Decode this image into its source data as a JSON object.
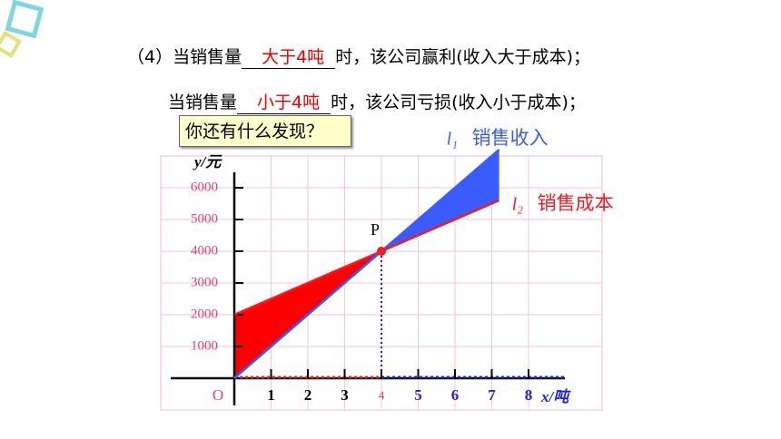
{
  "header": {
    "line1": {
      "prefix": "（4）当销售量",
      "blank": "大于4吨",
      "suffix": "时，该公司赢利(收入大于成本)；"
    },
    "line2": {
      "prefix": "当销售量",
      "blank": "小于4吨",
      "suffix": "时，该公司亏损(收入小于成本)；"
    }
  },
  "prompt": "你还有什么发现？",
  "chart_data": {
    "type": "line",
    "x": [
      0,
      4,
      7.2
    ],
    "series": [
      {
        "name": "销售收入",
        "line_label": "l₁",
        "color": "#3a5cff",
        "values": [
          0,
          4000,
          7200
        ]
      },
      {
        "name": "销售成本",
        "line_label": "l₂",
        "color": "#ee1c24",
        "values": [
          2000,
          4000,
          5600
        ]
      }
    ],
    "point": {
      "label": "P",
      "x": 4,
      "y": 4000
    },
    "origin_label": "O",
    "xlabel": "x/吨",
    "ylabel": "y/元",
    "xlim": [
      -2,
      10
    ],
    "ylim": [
      -1000,
      7000
    ],
    "xticks": [
      1,
      2,
      3,
      4,
      5,
      6,
      7,
      8
    ],
    "yticks": [
      1000,
      2000,
      3000,
      4000,
      5000,
      6000
    ],
    "grid": true
  }
}
